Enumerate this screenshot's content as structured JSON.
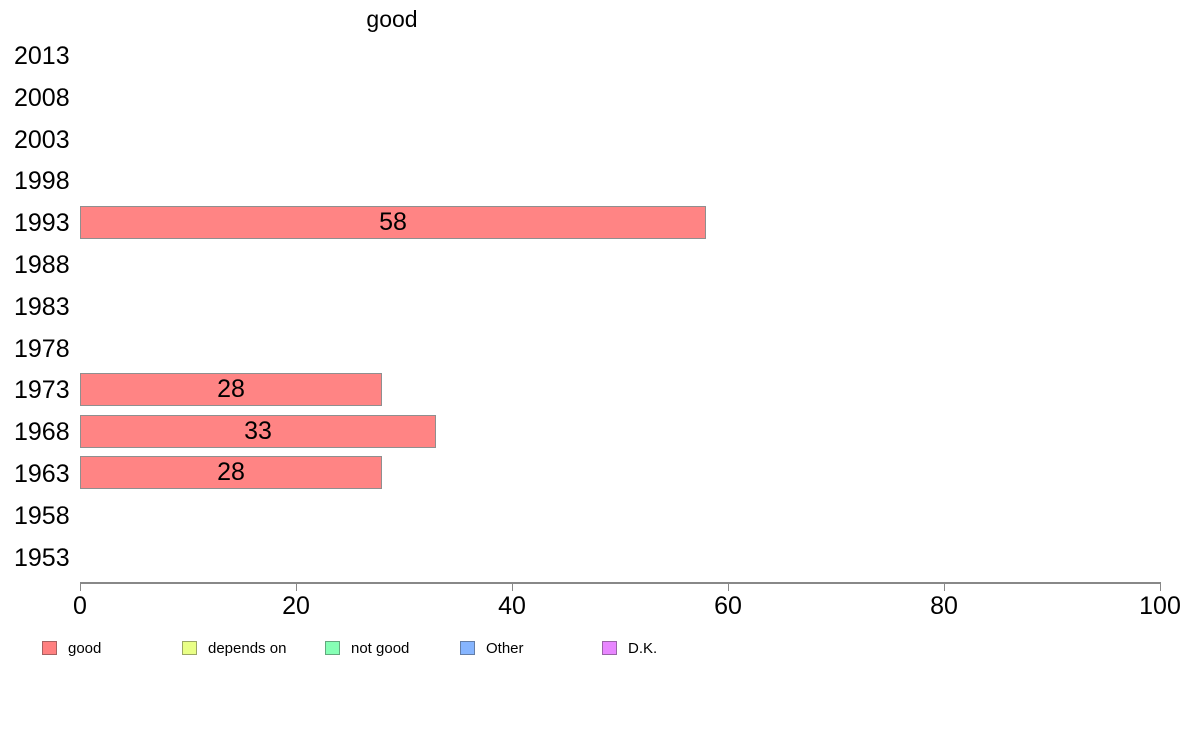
{
  "chart_data": {
    "type": "bar",
    "orientation": "horizontal",
    "title": "good",
    "categories": [
      "2013",
      "2008",
      "2003",
      "1998",
      "1993",
      "1988",
      "1983",
      "1978",
      "1973",
      "1968",
      "1963",
      "1958",
      "1953"
    ],
    "values": [
      null,
      null,
      null,
      null,
      58,
      null,
      null,
      null,
      28,
      33,
      28,
      null,
      null
    ],
    "xlabel": "",
    "ylabel": "",
    "xlim": [
      0,
      100
    ],
    "x_ticks": [
      0,
      20,
      40,
      60,
      80,
      100
    ],
    "grid": "off",
    "bar_fill_color": "#FF8484",
    "bar_border_color": "#8F8F8F",
    "axis_color": "#888888",
    "legend_position": "bottom",
    "legend": [
      {
        "label": "good",
        "color": "#FF8080"
      },
      {
        "label": "depends on",
        "color": "#E9FF86"
      },
      {
        "label": "not good",
        "color": "#86FFB5"
      },
      {
        "label": "Other",
        "color": "#86B5FF"
      },
      {
        "label": "D.K.",
        "color": "#E886FF"
      }
    ]
  }
}
